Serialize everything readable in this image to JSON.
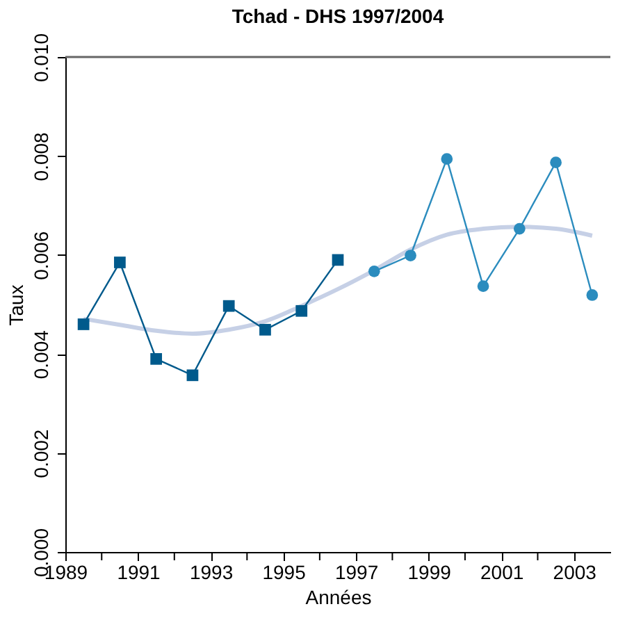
{
  "chart_data": {
    "type": "line",
    "title": "Tchad - DHS 1997/2004",
    "xlabel": "Années",
    "ylabel": "Taux",
    "xlim": [
      1989,
      2004
    ],
    "ylim": [
      0,
      0.01
    ],
    "xticks": [
      1989,
      {
        "value": 1990,
        "label": null
      },
      1991,
      {
        "value": 1992,
        "label": null
      },
      1993,
      {
        "value": 1994,
        "label": null
      },
      1995,
      {
        "value": 1996,
        "label": null
      },
      1997,
      {
        "value": 1998,
        "label": null
      },
      1999,
      {
        "value": 2000,
        "label": null
      },
      2001,
      {
        "value": 2002,
        "label": null
      },
      2003
    ],
    "yticks": [
      {
        "value": 0,
        "label": "0.000"
      },
      {
        "value": 0.002,
        "label": "0.002"
      },
      {
        "value": 0.004,
        "label": "0.004"
      },
      {
        "value": 0.006,
        "label": "0.006"
      },
      {
        "value": 0.008,
        "label": "0.008"
      },
      {
        "value": 0.01,
        "label": "0.010"
      }
    ],
    "grid": false,
    "series": [
      {
        "color": "#c6d0e6",
        "marker": "none",
        "x": [
          1989.5,
          1990.5,
          1991.5,
          1992.5,
          1993.5,
          1994.5,
          1995.5,
          1996.5,
          1997.5,
          1998.5,
          1999.5,
          2000.5,
          2001.5,
          2002.5,
          2003.5
        ],
        "values": [
          0.00471,
          0.00459,
          0.00447,
          0.00441,
          0.00449,
          0.00466,
          0.00497,
          0.00531,
          0.00569,
          0.00611,
          0.00641,
          0.00653,
          0.00657,
          0.00653,
          0.00639
        ]
      },
      {
        "color": "#005a8c",
        "marker": "square",
        "x": [
          1989.5,
          1990.5,
          1991.5,
          1992.5,
          1993.5,
          1994.5,
          1995.5,
          1996.5
        ],
        "values": [
          0.0046,
          0.00585,
          0.0039,
          0.00357,
          0.00497,
          0.00449,
          0.00487,
          0.0059
        ]
      },
      {
        "color": "#2b8cbe",
        "marker": "circle",
        "x": [
          1997.5,
          1998.5,
          1999.5,
          2000.5,
          2001.5,
          2002.5,
          2003.5
        ],
        "values": [
          0.00567,
          0.00599,
          0.00794,
          0.00537,
          0.00653,
          0.00787,
          0.00519
        ]
      }
    ]
  }
}
